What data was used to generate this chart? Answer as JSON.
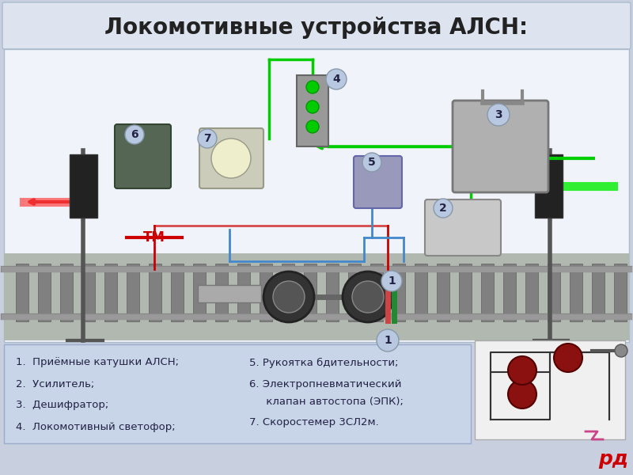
{
  "title": "Локомотивные устройства АЛСН:",
  "title_fontsize": 20,
  "title_color": "#222222",
  "bg_color": "#d0d8e8",
  "slide_bg": "#c8d0e0",
  "header_bg": "#dde4f0",
  "legend_bg": "#c8d4e8",
  "legend_items_col1": [
    "1.  Приёмные катушки АЛСН;",
    "2.  Усилитель;",
    "3.  Дешифратор;",
    "4.  Локомотивный светофор;"
  ],
  "legend_items_col2": [
    "5. Рукоятка бдительности;",
    "6. Электропневматический",
    "     клапан автостопа (ЭПК);",
    "7. Скоростемер 3СЛ2м."
  ],
  "tm_label": "ТМ",
  "tm_color": "#cc0000",
  "logo_text": "рд",
  "logo_color": "#cc0000",
  "white_bg": "#f0f4fa",
  "label_color": "#333333",
  "green_line": "#00cc00",
  "red_line": "#cc0000",
  "blue_line": "#4488cc",
  "circle_bg": "#b8c8e0",
  "circle_text_color": "#222244"
}
